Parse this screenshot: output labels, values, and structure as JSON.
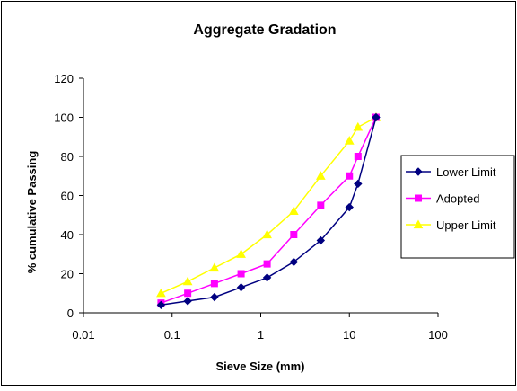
{
  "chart_data": {
    "type": "line",
    "title": "Aggregate Gradation",
    "xlabel": "Sieve Size (mm)",
    "ylabel": "% cumulative Passing",
    "x_scale": "log",
    "xlim": [
      0.01,
      100
    ],
    "ylim": [
      0,
      120
    ],
    "x_ticks": [
      "0.01",
      "0.1",
      "1",
      "10",
      "100"
    ],
    "y_ticks": [
      "0",
      "20",
      "40",
      "60",
      "80",
      "100",
      "120"
    ],
    "grid": false,
    "legend_position": "right",
    "x": [
      0.075,
      0.15,
      0.3,
      0.6,
      1.18,
      2.36,
      4.75,
      10,
      12.5,
      20
    ],
    "series": [
      {
        "name": "Lower Limit",
        "color": "#000080",
        "marker": "diamond",
        "values": [
          4,
          6,
          8,
          13,
          18,
          26,
          37,
          54,
          66,
          100
        ]
      },
      {
        "name": "Adopted",
        "color": "#FF00FF",
        "marker": "square",
        "values": [
          5,
          10,
          15,
          20,
          25,
          40,
          55,
          70,
          80,
          100
        ]
      },
      {
        "name": "Upper Limit",
        "color": "#FFFF00",
        "marker": "triangle",
        "values": [
          10,
          16,
          23,
          30,
          40,
          52,
          70,
          88,
          95,
          100
        ]
      }
    ]
  }
}
